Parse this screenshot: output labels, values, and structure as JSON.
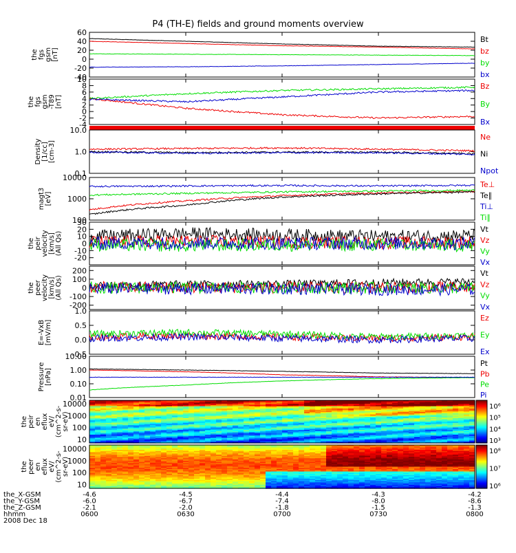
{
  "title": "P4 (TH-E) fields and ground moments overview",
  "date": "2008 Dec 18",
  "colors": {
    "black": "#000000",
    "red": "#ee0000",
    "green": "#00dd00",
    "blue": "#0000cc"
  },
  "time_ticks": [
    "0600",
    "0630",
    "0700",
    "0730",
    "0800"
  ],
  "orbit_rows": [
    {
      "label": "the_X-GSM",
      "values": [
        "-4.6",
        "-4.5",
        "-4.4",
        "-4.3",
        "-4.2"
      ]
    },
    {
      "label": "the_Y-GSM",
      "values": [
        "-6.0",
        "-6.7",
        "-7.4",
        "-8.0",
        "-8.6"
      ]
    },
    {
      "label": "the_Z-GSM",
      "values": [
        "-2.1",
        "-2.0",
        "-1.8",
        "-1.5",
        "-1.3"
      ]
    },
    {
      "label": "hhmm",
      "values": [
        "0600",
        "0630",
        "0700",
        "0730",
        "0800"
      ]
    }
  ],
  "chart_data": [
    {
      "type": "line",
      "id": "p1",
      "ylabel": [
        "the",
        "fgs",
        "gsm",
        "[nT]"
      ],
      "ylim": [
        -40,
        60
      ],
      "log": false,
      "ticks": [
        "60",
        "40",
        "20",
        "0",
        "-20",
        "-40"
      ],
      "x": [
        "0600",
        "0630",
        "0700",
        "0730",
        "0800"
      ],
      "series": [
        {
          "name": "Bt",
          "color": "#000000",
          "values": [
            46,
            40,
            34,
            29,
            27
          ]
        },
        {
          "name": "bz",
          "color": "#ee0000",
          "values": [
            40,
            35,
            30,
            27,
            23
          ]
        },
        {
          "name": "by",
          "color": "#00dd00",
          "values": [
            12,
            11,
            10,
            9,
            8
          ]
        },
        {
          "name": "bx",
          "color": "#0000cc",
          "values": [
            -18,
            -17,
            -15,
            -12,
            -9
          ]
        }
      ]
    },
    {
      "type": "line",
      "id": "p2",
      "ylabel": [
        "the",
        "fgs",
        "gsm",
        "-T89",
        "[nT]"
      ],
      "ylim": [
        -4,
        10
      ],
      "log": false,
      "ticks": [
        "10",
        "8",
        "6",
        "4",
        "2",
        "0",
        "-2",
        "-4"
      ],
      "x": [
        "0600",
        "0630",
        "0700",
        "0730",
        "0800"
      ],
      "series": [
        {
          "name": "Bz",
          "color": "#ee0000",
          "values": [
            4,
            1,
            -1,
            -2,
            -1.5
          ]
        },
        {
          "name": "By",
          "color": "#00dd00",
          "values": [
            4,
            5.5,
            6.5,
            7,
            7.5
          ]
        },
        {
          "name": "Bx",
          "color": "#0000cc",
          "values": [
            3.8,
            3,
            4.5,
            6,
            6.5
          ]
        }
      ]
    },
    {
      "type": "line",
      "id": "p3",
      "ylabel": [
        "Density",
        "[1/cc]",
        "[cm-3]"
      ],
      "ylim": [
        0.1,
        10
      ],
      "log": true,
      "ticks": [
        "10.0",
        "1.0",
        "0.1"
      ],
      "x": [
        "0600",
        "0630",
        "0700",
        "0730",
        "0800"
      ],
      "series": [
        {
          "name": "Ne",
          "color": "#ee0000",
          "values": [
            1.3,
            1.4,
            1.5,
            1.3,
            1.1
          ]
        },
        {
          "name": "Ni",
          "color": "#000000",
          "values": [
            1.0,
            0.9,
            0.95,
            0.95,
            0.8
          ]
        },
        {
          "name": "Npot",
          "color": "#0000cc",
          "values": [
            0.95,
            0.85,
            0.9,
            0.9,
            0.75
          ]
        }
      ]
    },
    {
      "type": "line",
      "id": "p4",
      "ylabel": [
        "magt3",
        "[eV]"
      ],
      "ylim": [
        100,
        10000
      ],
      "log": true,
      "ticks": [
        "10000",
        "1000",
        "100"
      ],
      "x": [
        "0600",
        "0630",
        "0700",
        "0730",
        "0800"
      ],
      "series": [
        {
          "name": "Te⊥",
          "color": "#ee0000",
          "values": [
            300,
            800,
            1400,
            1900,
            2200
          ]
        },
        {
          "name": "Te∥",
          "color": "#000000",
          "values": [
            180,
            500,
            1200,
            1700,
            2100
          ]
        },
        {
          "name": "Ti⊥",
          "color": "#0000cc",
          "values": [
            3800,
            4000,
            4200,
            4000,
            4300
          ]
        },
        {
          "name": "Ti∥",
          "color": "#00dd00",
          "values": [
            1500,
            1800,
            2100,
            2300,
            2500
          ]
        }
      ]
    },
    {
      "type": "line",
      "id": "p5",
      "ylabel": [
        "the",
        "peir",
        "velocity",
        "[km/s]",
        "(All Qs)"
      ],
      "ylim": [
        -30,
        30
      ],
      "log": false,
      "ticks": [
        "30",
        "20",
        "10",
        "0",
        "-10",
        "-20"
      ],
      "x": [
        "0600",
        "0630",
        "0700",
        "0730",
        "0800"
      ],
      "series": [
        {
          "name": "Vt",
          "color": "#000000",
          "values": [
            10,
            14,
            12,
            10,
            11
          ]
        },
        {
          "name": "Vz",
          "color": "#ee0000",
          "values": [
            2,
            3,
            2,
            1,
            2
          ]
        },
        {
          "name": "Vy",
          "color": "#00dd00",
          "values": [
            -2,
            -3,
            -2,
            -2,
            -3
          ]
        },
        {
          "name": "Vx",
          "color": "#0000cc",
          "values": [
            0,
            1,
            0,
            0,
            0
          ]
        }
      ]
    },
    {
      "type": "line",
      "id": "p6",
      "ylabel": [
        "the",
        "peer",
        "velocity",
        "[km/s]",
        "(All Qs)"
      ],
      "ylim": [
        -250,
        250
      ],
      "log": false,
      "ticks": [
        "200",
        "100",
        "0",
        "-100",
        "-200"
      ],
      "x": [
        "0600",
        "0630",
        "0700",
        "0730",
        "0800"
      ],
      "series": [
        {
          "name": "Vt",
          "color": "#000000",
          "values": [
            30,
            40,
            45,
            60,
            70
          ]
        },
        {
          "name": "Vz",
          "color": "#ee0000",
          "values": [
            5,
            5,
            5,
            5,
            5
          ]
        },
        {
          "name": "Vy",
          "color": "#00dd00",
          "values": [
            0,
            0,
            0,
            0,
            0
          ]
        },
        {
          "name": "Vx",
          "color": "#0000cc",
          "values": [
            -5,
            -10,
            -10,
            -20,
            -20
          ]
        }
      ]
    },
    {
      "type": "line",
      "id": "p7",
      "ylabel": [
        "E=-VxB",
        "[mV/m]"
      ],
      "ylim": [
        -0.5,
        1.0
      ],
      "log": false,
      "ticks": [
        "1.0",
        "0.5",
        "0.0",
        "-0.5"
      ],
      "x": [
        "0600",
        "0630",
        "0700",
        "0730",
        "0800"
      ],
      "series": [
        {
          "name": "Ez",
          "color": "#ee0000",
          "values": [
            0.1,
            0.15,
            0.1,
            0.05,
            0.1
          ]
        },
        {
          "name": "Ey",
          "color": "#00dd00",
          "values": [
            0.2,
            0.25,
            0.2,
            0.1,
            0.15
          ]
        },
        {
          "name": "Ex",
          "color": "#0000cc",
          "values": [
            0.05,
            0.1,
            0.05,
            0.0,
            0.05
          ]
        }
      ]
    },
    {
      "type": "line",
      "id": "p8",
      "ylabel": [
        "Pressure",
        "[nPa]"
      ],
      "ylim": [
        0.01,
        10
      ],
      "log": true,
      "ticks": [
        "10.00",
        "1.00",
        "0.10",
        "0.01"
      ],
      "x": [
        "0600",
        "0630",
        "0700",
        "0730",
        "0800"
      ],
      "series": [
        {
          "name": "Pt",
          "color": "#000000",
          "values": [
            1.2,
            1.0,
            0.8,
            0.6,
            0.55
          ]
        },
        {
          "name": "Pb",
          "color": "#ee0000",
          "values": [
            1.0,
            0.75,
            0.45,
            0.32,
            0.28
          ]
        },
        {
          "name": "Pe",
          "color": "#00dd00",
          "values": [
            0.035,
            0.08,
            0.16,
            0.24,
            0.28
          ]
        },
        {
          "name": "Pi",
          "color": "#0000cc",
          "values": [
            0.3,
            0.3,
            0.3,
            0.3,
            0.3
          ]
        }
      ]
    },
    {
      "type": "heatmap",
      "id": "p9",
      "ylabel": [
        "the",
        "peir",
        "en",
        "eflux",
        "eV/",
        "(cm^2-s-",
        "sr-eV)"
      ],
      "ylim": [
        5,
        20000
      ],
      "log": true,
      "ticks": [
        "10000",
        "1000",
        "100",
        "10"
      ],
      "x": [
        "0600",
        "0630",
        "0700",
        "0730",
        "0800"
      ],
      "colorbar_ticks": [
        "10⁶",
        "10⁵",
        "10⁴",
        "10³"
      ]
    },
    {
      "type": "heatmap",
      "id": "p10",
      "ylabel": [
        "the",
        "peer",
        "en",
        "eflux",
        "eV/",
        "(cm^2-s-",
        "sr-eV)"
      ],
      "ylim": [
        5,
        20000
      ],
      "log": true,
      "ticks": [
        "10000",
        "1000",
        "100",
        "10"
      ],
      "x": [
        "0600",
        "0630",
        "0700",
        "0730",
        "0800"
      ],
      "colorbar_ticks": [
        "10⁸",
        "10⁷",
        "10⁶"
      ]
    }
  ]
}
